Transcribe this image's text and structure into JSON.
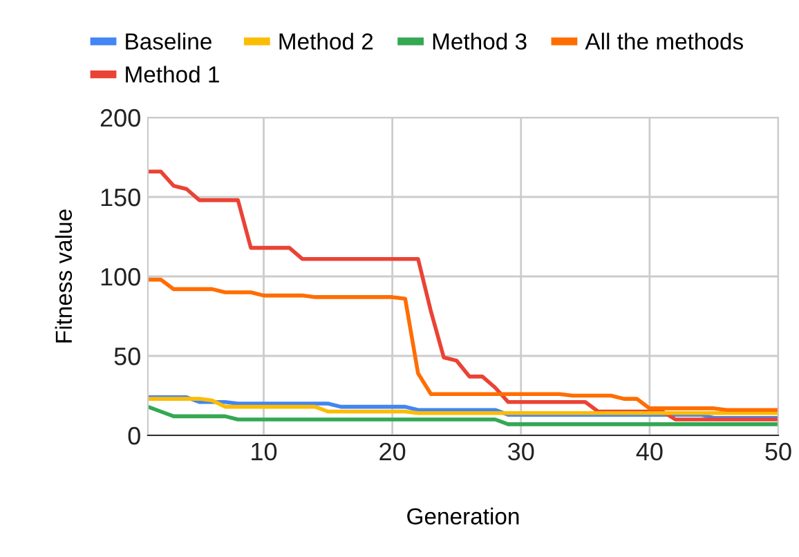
{
  "chart_data": {
    "type": "line",
    "xlabel": "Generation",
    "ylabel": "Fitness value",
    "x": [
      1,
      2,
      3,
      4,
      5,
      6,
      7,
      8,
      9,
      10,
      11,
      12,
      13,
      14,
      15,
      16,
      17,
      18,
      19,
      20,
      21,
      22,
      23,
      24,
      25,
      26,
      27,
      28,
      29,
      30,
      31,
      32,
      33,
      34,
      35,
      36,
      37,
      38,
      39,
      40,
      41,
      42,
      43,
      44,
      45,
      46,
      47,
      48,
      49,
      50
    ],
    "series": [
      {
        "name": "Baseline",
        "color": "#4285f4",
        "values": [
          24,
          24,
          24,
          24,
          21,
          21,
          21,
          20,
          20,
          20,
          20,
          20,
          20,
          20,
          20,
          18,
          18,
          18,
          18,
          18,
          18,
          16,
          16,
          16,
          16,
          16,
          16,
          16,
          13,
          13,
          13,
          13,
          13,
          13,
          13,
          13,
          13,
          13,
          13,
          13,
          13,
          13,
          13,
          13,
          11,
          11,
          11,
          11,
          11,
          11
        ]
      },
      {
        "name": "Method 1",
        "color": "#ea4335",
        "values": [
          166,
          166,
          157,
          155,
          148,
          148,
          148,
          148,
          118,
          118,
          118,
          118,
          111,
          111,
          111,
          111,
          111,
          111,
          111,
          111,
          111,
          111,
          78,
          49,
          47,
          37,
          37,
          30,
          21,
          21,
          21,
          21,
          21,
          21,
          21,
          15,
          15,
          15,
          15,
          15,
          15,
          10,
          10,
          10,
          10,
          10,
          10,
          10,
          10,
          10
        ]
      },
      {
        "name": "Method 2",
        "color": "#fbbc04",
        "values": [
          23,
          23,
          23,
          23,
          23,
          22,
          18,
          18,
          18,
          18,
          18,
          18,
          18,
          18,
          15,
          15,
          15,
          15,
          15,
          15,
          15,
          14,
          14,
          14,
          14,
          14,
          14,
          14,
          14,
          14,
          14,
          14,
          14,
          14,
          14,
          14,
          14,
          14,
          14,
          14,
          14,
          14,
          14,
          14,
          14,
          14,
          14,
          14,
          14,
          14
        ]
      },
      {
        "name": "Method 3",
        "color": "#34a853",
        "values": [
          18,
          15,
          12,
          12,
          12,
          12,
          12,
          10,
          10,
          10,
          10,
          10,
          10,
          10,
          10,
          10,
          10,
          10,
          10,
          10,
          10,
          10,
          10,
          10,
          10,
          10,
          10,
          10,
          7,
          7,
          7,
          7,
          7,
          7,
          7,
          7,
          7,
          7,
          7,
          7,
          7,
          7,
          7,
          7,
          7,
          7,
          7,
          7,
          7,
          7
        ]
      },
      {
        "name": "All the methods",
        "color": "#ff6d01",
        "values": [
          98,
          98,
          92,
          92,
          92,
          92,
          90,
          90,
          90,
          88,
          88,
          88,
          88,
          87,
          87,
          87,
          87,
          87,
          87,
          87,
          86,
          39,
          26,
          26,
          26,
          26,
          26,
          26,
          26,
          26,
          26,
          26,
          26,
          25,
          25,
          25,
          25,
          23,
          23,
          17,
          17,
          17,
          17,
          17,
          17,
          16,
          16,
          16,
          16,
          16
        ]
      }
    ],
    "xlim": [
      1,
      50
    ],
    "xticks": [
      10,
      20,
      30,
      40,
      50
    ],
    "ylim": [
      0,
      200
    ],
    "yticks": [
      0,
      50,
      100,
      150,
      200
    ],
    "grid": true,
    "legend": "top",
    "marker": "none",
    "line_style": "solid"
  }
}
